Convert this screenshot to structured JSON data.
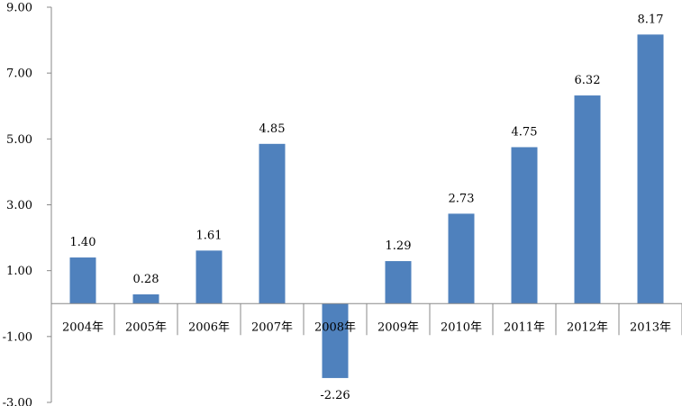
{
  "chart_data": {
    "type": "bar",
    "categories": [
      "2004年",
      "2005年",
      "2006年",
      "2007年",
      "2008年",
      "2009年",
      "2010年",
      "2011年",
      "2012年",
      "2013年"
    ],
    "values": [
      1.4,
      0.28,
      1.61,
      4.85,
      -2.26,
      1.29,
      2.73,
      4.75,
      6.32,
      8.17
    ],
    "value_labels": [
      "1.40",
      "0.28",
      "1.61",
      "4.85",
      "-2.26",
      "1.29",
      "2.73",
      "4.75",
      "6.32",
      "8.17"
    ],
    "yticks": [
      9.0,
      7.0,
      5.0,
      3.0,
      1.0,
      -1.0,
      -3.0
    ],
    "ytick_labels": [
      "9.00",
      "7.00",
      "5.00",
      "3.00",
      "1.00",
      "-1.00",
      "-3.00"
    ],
    "ylim": [
      -3.0,
      9.0
    ],
    "grid": false,
    "legend": "none",
    "bar_color": "#4f81bd",
    "axis_color": "#888888"
  }
}
